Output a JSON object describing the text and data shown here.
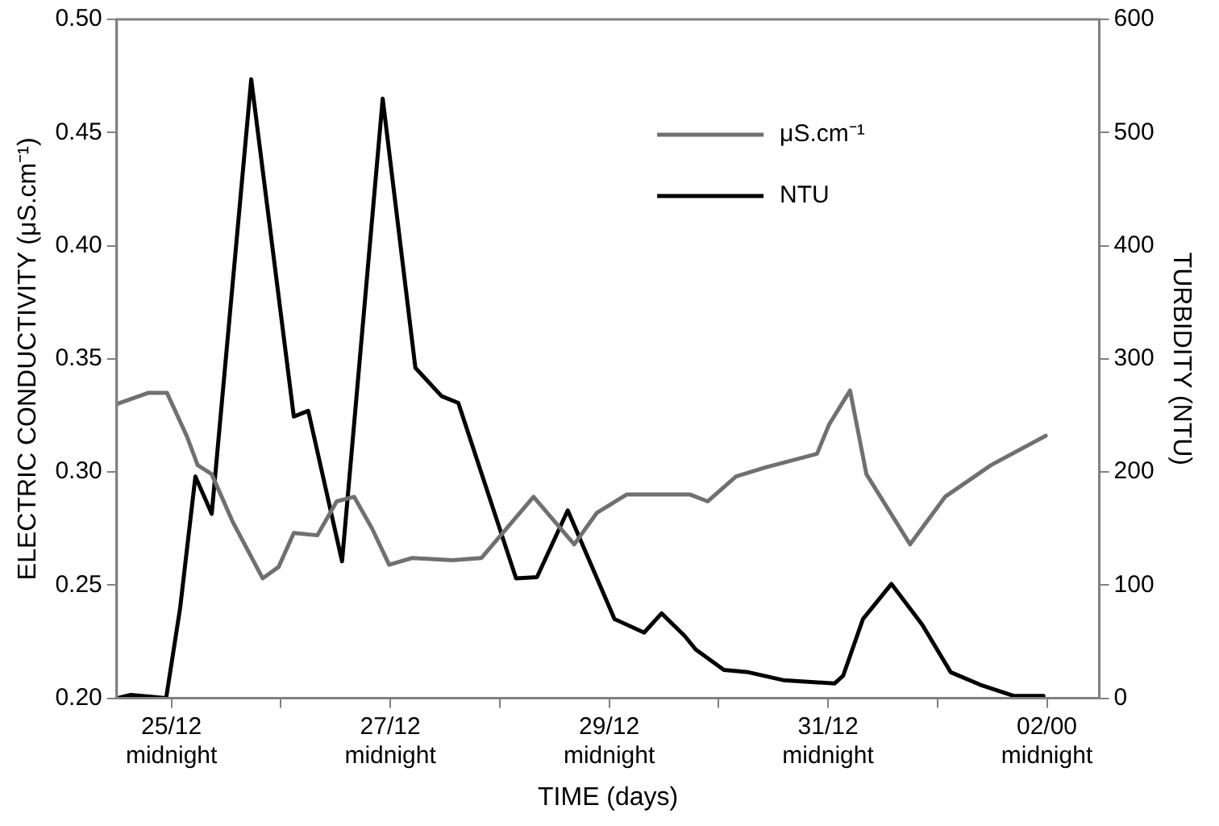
{
  "chart_data": {
    "type": "line",
    "xlabel": "TIME (days)",
    "ylabel": "ELECTRIC CONDUCTIVITY (μS.cm⁻¹)",
    "y2label": "TURBIDITY (NTU)",
    "xlim": [
      "1999-12-24T12:00",
      "2000-01-02T11:30"
    ],
    "xticks": [
      {
        "value": "1999-12-25",
        "label": "25/12\nmidnight"
      },
      {
        "value": "1999-12-26",
        "label": null
      },
      {
        "value": "1999-12-27",
        "label": "27/12\nmidnight"
      },
      {
        "value": "1999-12-28",
        "label": null
      },
      {
        "value": "1999-12-29",
        "label": "29/12\nmidnight"
      },
      {
        "value": "1999-12-30",
        "label": null
      },
      {
        "value": "1999-12-31",
        "label": "31/12\nmidnight"
      },
      {
        "value": "2000-01-01",
        "label": null
      },
      {
        "value": "2000-01-02",
        "label": "02/00\nmidnight"
      }
    ],
    "ylim": [
      0.2,
      0.5
    ],
    "yticks": [
      {
        "value": 0.2,
        "label": "0.20"
      },
      0.25,
      {
        "value": 0.3,
        "label": "0.30"
      },
      0.35,
      {
        "value": 0.4,
        "label": "0.40"
      },
      0.45,
      {
        "value": 0.5,
        "label": "0.50"
      }
    ],
    "y2lim": [
      0,
      600
    ],
    "y2ticks": [
      0,
      100,
      200,
      300,
      400,
      500,
      600
    ],
    "grid": false,
    "legend": "top right",
    "marker": "none",
    "line_style": "solid",
    "series": [
      {
        "name": "μS.cm⁻¹",
        "color": "#707070",
        "x": [
          "1999-12-24T12:00",
          "1999-12-24T19:00",
          "1999-12-24T23:00",
          "1999-12-25T03:20",
          "1999-12-25T05:45",
          "1999-12-25T08:50",
          "1999-12-25T13:25",
          "1999-12-25T20:00",
          "1999-12-25T23:30",
          "1999-12-26T02:50",
          "1999-12-26T08:00",
          "1999-12-26T12:15",
          "1999-12-26T16:05",
          "1999-12-26T20:00",
          "1999-12-26T23:45",
          "1999-12-27T04:50",
          "1999-12-27T13:40",
          "1999-12-27T20:00",
          "1999-12-28T07:25",
          "1999-12-28T16:20",
          "1999-12-28T21:20",
          "1999-12-29T03:50",
          "1999-12-29T12:45",
          "1999-12-29T17:45",
          "1999-12-29T21:35",
          "1999-12-30T03:50",
          "1999-12-30T10:20",
          "1999-12-30T21:35",
          "1999-12-31T00:15",
          "1999-12-31T04:50",
          "1999-12-31T08:25",
          "1999-12-31T18:00",
          "2000-01-01T01:40",
          "2000-01-01T11:45",
          "2000-01-01T23:45"
        ],
        "values": [
          0.33,
          0.335,
          0.335,
          0.316,
          0.303,
          0.299,
          0.278,
          0.253,
          0.258,
          0.273,
          0.272,
          0.287,
          0.289,
          0.275,
          0.259,
          0.262,
          0.261,
          0.262,
          0.289,
          0.268,
          0.282,
          0.29,
          0.29,
          0.29,
          0.287,
          0.298,
          0.302,
          0.308,
          0.321,
          0.336,
          0.299,
          0.268,
          0.289,
          0.303,
          0.316
        ]
      },
      {
        "name": "NTU",
        "color": "#000000",
        "axis": "y2",
        "x": [
          "1999-12-24T12:00",
          "1999-12-24T15:05",
          "1999-12-24T22:50",
          "1999-12-25T01:55",
          "1999-12-25T05:15",
          "1999-12-25T08:50",
          "1999-12-25T17:30",
          "1999-12-26T02:50",
          "1999-12-26T06:00",
          "1999-12-26T13:25",
          "1999-12-26T22:20",
          "1999-12-27T05:30",
          "1999-12-27T11:15",
          "1999-12-27T14:55",
          "1999-12-28T03:35",
          "1999-12-28T08:10",
          "1999-12-28T14:55",
          "1999-12-29T01:10",
          "1999-12-29T07:40",
          "1999-12-29T11:30",
          "1999-12-29T16:35",
          "1999-12-29T19:00",
          "1999-12-30T01:10",
          "1999-12-30T06:30",
          "1999-12-30T14:10",
          "1999-12-31T01:25",
          "1999-12-31T03:20",
          "1999-12-31T07:40",
          "1999-12-31T13:55",
          "1999-12-31T20:40",
          "2000-01-01T02:55",
          "2000-01-01T09:20",
          "2000-01-01T16:50",
          "2000-01-01T23:15"
        ],
        "values": [
          0,
          3,
          0,
          80,
          196,
          163,
          547,
          249,
          254,
          121,
          530,
          292,
          267,
          261,
          106,
          107,
          166,
          70,
          58,
          75,
          55,
          43,
          25,
          23,
          16,
          13,
          20,
          70,
          101,
          65,
          23,
          12,
          2,
          2
        ]
      }
    ]
  }
}
